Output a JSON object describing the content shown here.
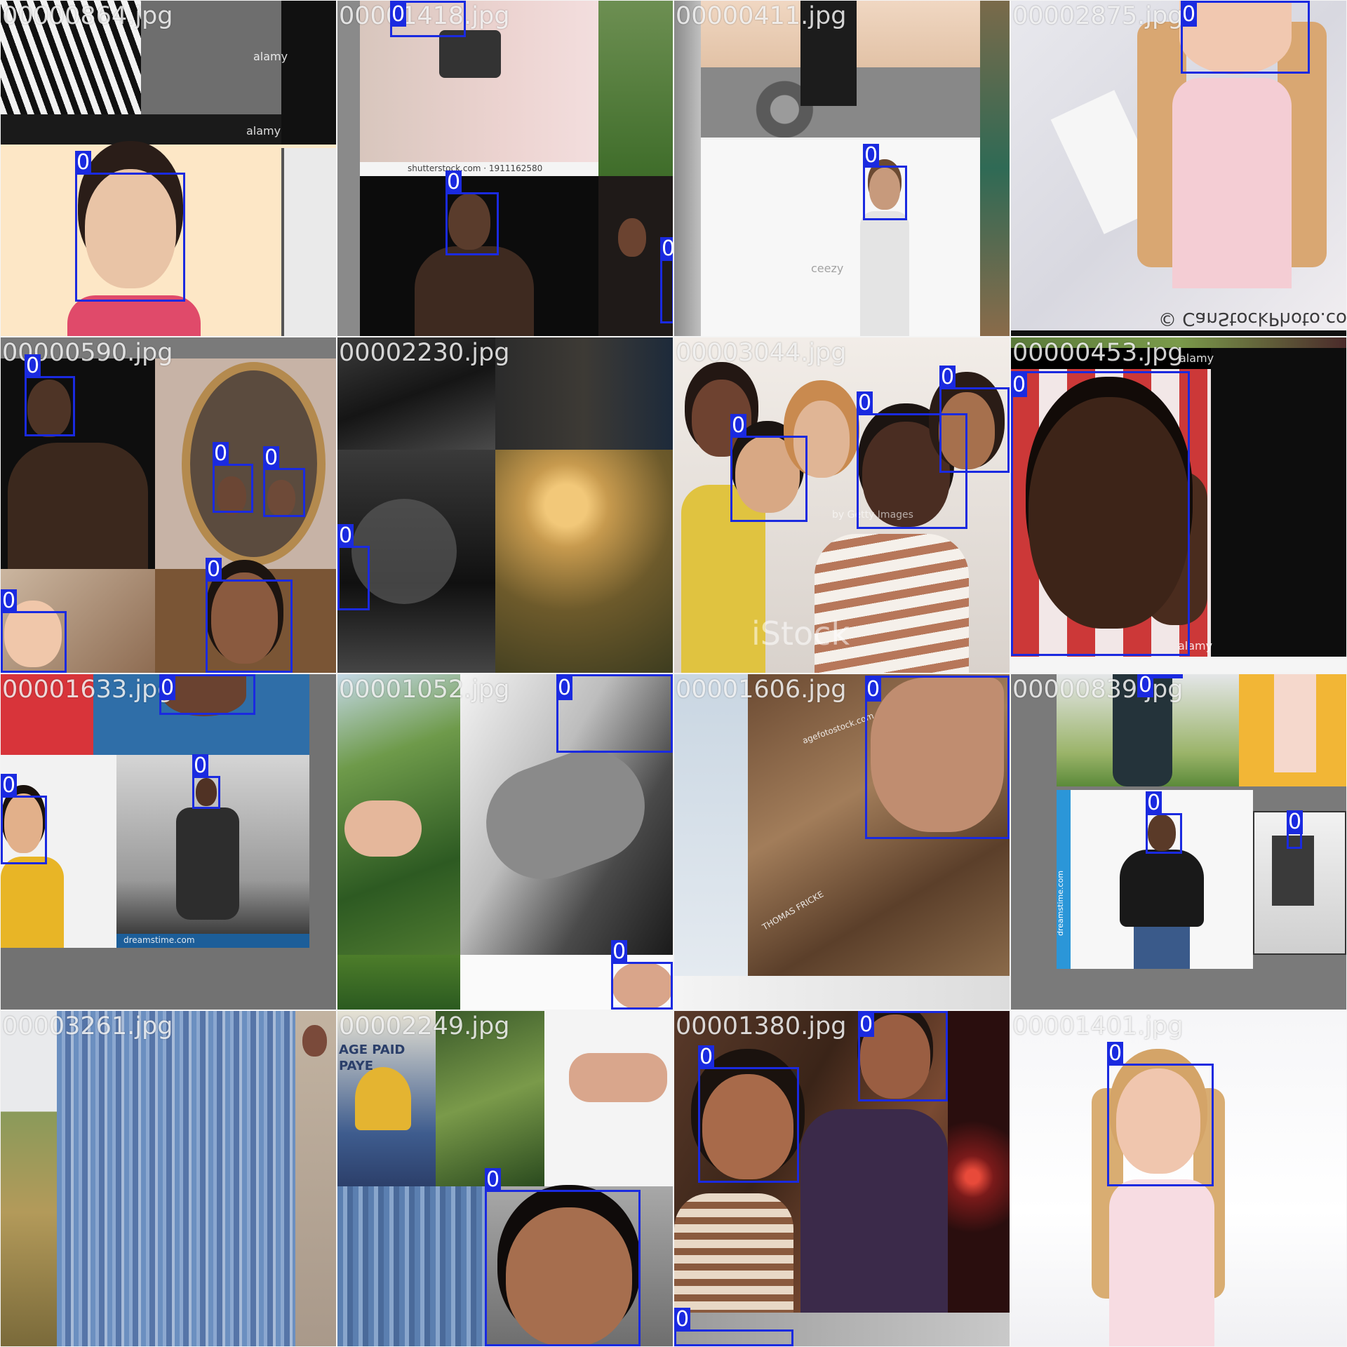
{
  "bbox_color": "#1a2ae0",
  "tiles": [
    {
      "filename": "00000864.jpg",
      "watermarks": [
        "alamy",
        "alamy"
      ],
      "boxes": [
        {
          "label": "0"
        }
      ]
    },
    {
      "filename": "00001418.jpg",
      "watermarks": [
        "shutterstock.com · 1911162580"
      ],
      "boxes": [
        {
          "label": "0"
        },
        {
          "label": "0"
        },
        {
          "label": "0"
        }
      ]
    },
    {
      "filename": "00000411.jpg",
      "watermarks": [
        "ceezy"
      ],
      "boxes": [
        {
          "label": "0"
        }
      ]
    },
    {
      "filename": "00002875.jpg",
      "watermarks": [
        "© CanStockPhoto.com"
      ],
      "boxes": [
        {
          "label": "0"
        }
      ]
    },
    {
      "filename": "00000590.jpg",
      "watermarks": [],
      "boxes": [
        {
          "label": "0"
        },
        {
          "label": "0"
        },
        {
          "label": "0"
        },
        {
          "label": "0"
        },
        {
          "label": "0"
        }
      ]
    },
    {
      "filename": "00002230.jpg",
      "watermarks": [],
      "boxes": [
        {
          "label": "0"
        }
      ]
    },
    {
      "filename": "00003044.jpg",
      "watermarks": [
        "iStock",
        "by Getty Images"
      ],
      "boxes": [
        {
          "label": "0"
        },
        {
          "label": "0"
        },
        {
          "label": "0"
        }
      ]
    },
    {
      "filename": "00000453.jpg",
      "watermarks": [
        "alamy",
        "alamy"
      ],
      "boxes": [
        {
          "label": "0"
        }
      ]
    },
    {
      "filename": "00001633.jpg",
      "watermarks": [
        "dreamstime.com"
      ],
      "boxes": [
        {
          "label": "0"
        },
        {
          "label": "0"
        },
        {
          "label": "0"
        }
      ]
    },
    {
      "filename": "00001052.jpg",
      "watermarks": [],
      "boxes": [
        {
          "label": "0"
        },
        {
          "label": "0"
        }
      ]
    },
    {
      "filename": "00001606.jpg",
      "watermarks": [
        "agefotostock.com",
        "THOMAS FRICKE"
      ],
      "boxes": [
        {
          "label": "0"
        }
      ]
    },
    {
      "filename": "00000839.jpg",
      "watermarks": [
        "dreamstime.com"
      ],
      "boxes": [
        {
          "label": "0"
        },
        {
          "label": "0"
        },
        {
          "label": "0"
        }
      ]
    },
    {
      "filename": "00003261.jpg",
      "watermarks": [],
      "boxes": []
    },
    {
      "filename": "00002249.jpg",
      "watermarks": [
        "AGE PAID",
        "PAYE"
      ],
      "boxes": [
        {
          "label": "0"
        }
      ]
    },
    {
      "filename": "00001380.jpg",
      "watermarks": [],
      "boxes": [
        {
          "label": "0"
        },
        {
          "label": "0"
        },
        {
          "label": "0"
        }
      ]
    },
    {
      "filename": "00001401.jpg",
      "watermarks": [],
      "boxes": [
        {
          "label": "0"
        }
      ]
    }
  ]
}
